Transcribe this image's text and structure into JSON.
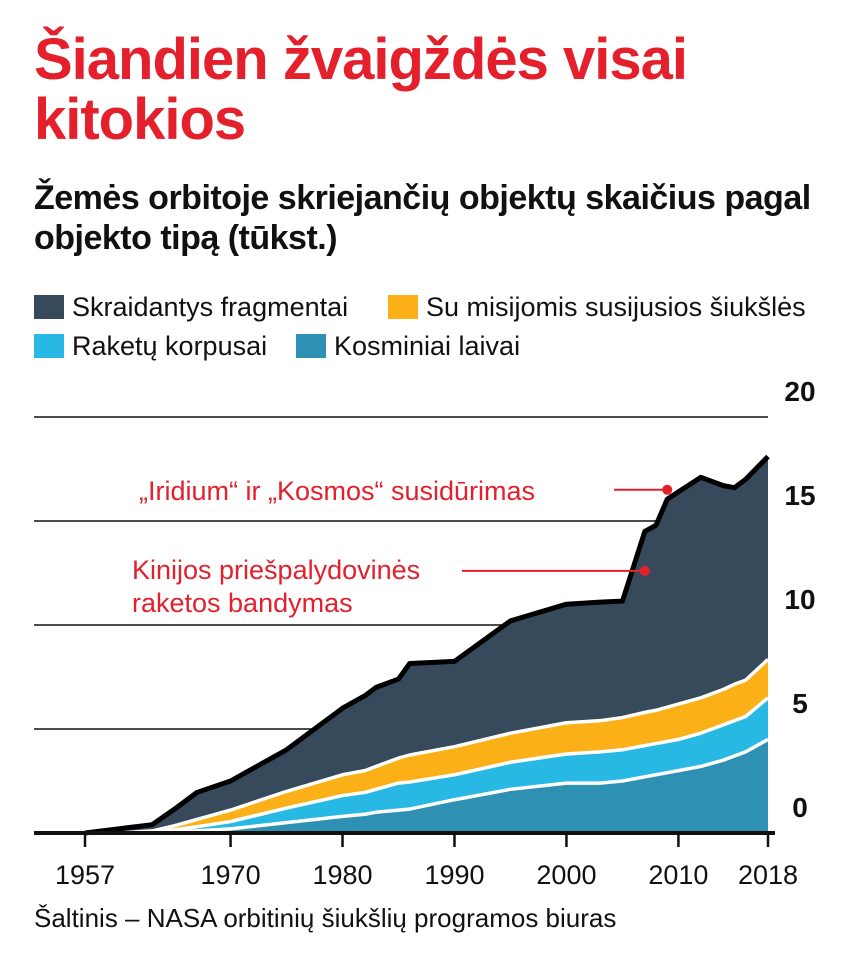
{
  "chart_data": {
    "type": "area",
    "stacked": true,
    "title": "Šiandien žvaigždės visai kitokios",
    "subtitle": "Žemės orbitoje skriejančių objektų skaičius pagal objekto tipą (tūkst.)",
    "source": "Šaltinis – NASA orbitinių šiukšlių programos biuras",
    "xlim": [
      1957,
      2018
    ],
    "ylim": [
      0,
      20
    ],
    "y_ticks": [
      "0",
      "5",
      "10",
      "15",
      "20"
    ],
    "x_ticks": [
      "1957",
      "1970",
      "1980",
      "1990",
      "2000",
      "2010",
      "2018"
    ],
    "x_tick_positions": [
      1957,
      1970,
      1980,
      1990,
      2000,
      2010,
      2018
    ],
    "grid": true,
    "legend_position": "top",
    "x": [
      1957,
      1960,
      1963,
      1965,
      1967,
      1970,
      1975,
      1980,
      1982,
      1983,
      1985,
      1986,
      1990,
      1995,
      2000,
      2003,
      2005,
      2007,
      2008,
      2009,
      2010,
      2012,
      2014,
      2015,
      2016,
      2018
    ],
    "series": [
      {
        "name": "Kosminiai laivai",
        "color": "#2e90b3",
        "values": [
          0,
          0,
          0,
          0.05,
          0.1,
          0.2,
          0.5,
          0.8,
          0.9,
          1.0,
          1.1,
          1.15,
          1.6,
          2.1,
          2.4,
          2.4,
          2.5,
          2.7,
          2.8,
          2.9,
          3.0,
          3.2,
          3.5,
          3.7,
          3.9,
          4.5
        ]
      },
      {
        "name": "Raketų korpusai",
        "color": "#27b9e3",
        "values": [
          0,
          0,
          0.05,
          0.1,
          0.2,
          0.35,
          0.7,
          1.0,
          1.05,
          1.1,
          1.3,
          1.3,
          1.2,
          1.3,
          1.4,
          1.5,
          1.5,
          1.5,
          1.5,
          1.5,
          1.5,
          1.6,
          1.7,
          1.7,
          1.7,
          2.0
        ]
      },
      {
        "name": "Su misijomis susijusios šiukšlės",
        "color": "#fcb017",
        "values": [
          0,
          0,
          0.05,
          0.2,
          0.35,
          0.55,
          0.8,
          1.0,
          1.05,
          1.1,
          1.2,
          1.3,
          1.35,
          1.4,
          1.5,
          1.5,
          1.55,
          1.6,
          1.6,
          1.65,
          1.7,
          1.7,
          1.7,
          1.75,
          1.75,
          1.85
        ]
      },
      {
        "name": "Skraidantys fragmentai",
        "color": "#364a5c",
        "values": [
          0,
          0.2,
          0.3,
          0.8,
          1.3,
          1.4,
          2.0,
          3.2,
          3.6,
          3.8,
          3.8,
          4.4,
          4.1,
          5.4,
          5.7,
          5.7,
          5.6,
          8.7,
          8.9,
          10.0,
          10.2,
          10.6,
          9.8,
          9.45,
          9.65,
          9.75
        ]
      }
    ],
    "annotations": [
      {
        "label": "„Iridium“ ir „Kosmos“ susidūrimas",
        "x": 2009,
        "y": 16.5
      },
      {
        "label": "Kinijos priešpalydovinės raketos bandymas",
        "lines": [
          "Kinijos priešpalydovinės",
          "raketos bandymas"
        ],
        "x": 2007,
        "y": 12.6
      }
    ]
  },
  "colors": {
    "title": "#e3202b",
    "annotation": "#e3202b",
    "total_line": "#000000",
    "grid": "#111111"
  }
}
